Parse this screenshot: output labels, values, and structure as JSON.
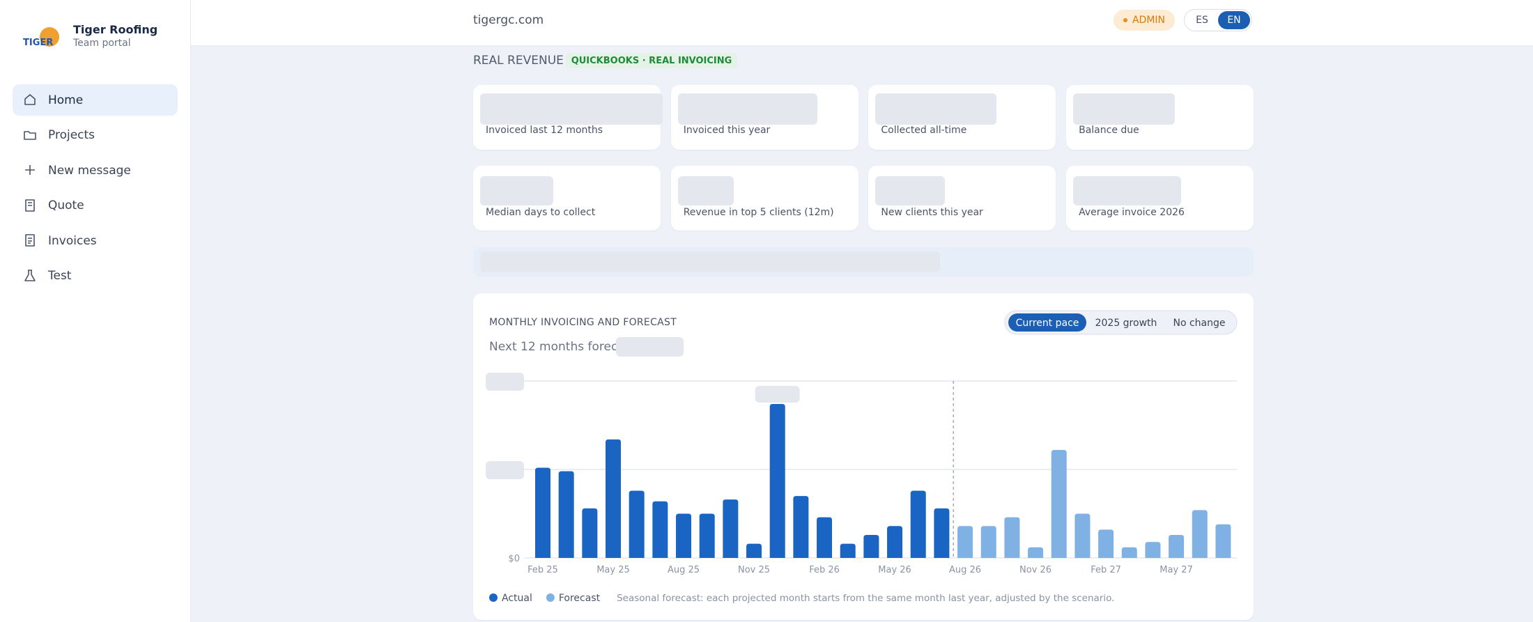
{
  "sidebar": {
    "brand": "Tiger Roofing",
    "subtitle": "Team portal",
    "nav": [
      "Home",
      "Projects",
      "New message",
      "Quote",
      "Invoices",
      "Test"
    ]
  },
  "topbar": {
    "domain": "tigergc.com",
    "role": "ADMIN",
    "languages": [
      "ES",
      "EN"
    ]
  },
  "section": {
    "title": "REAL REVENUE",
    "badge": "QUICKBOOKS · REAL INVOICING"
  },
  "kpis": [
    "Invoiced last 12 months",
    "Invoiced this year",
    "Collected all-time",
    "Balance due",
    "Median days to collect",
    "Revenue in top 5 clients (12m)",
    "New clients this year",
    "Average invoice 2026"
  ],
  "chart_data": {
    "type": "bar",
    "title": "MONTHLY INVOICING AND FORECAST",
    "subtitle": "Next 12 months forecast",
    "scenarios": [
      "Current pace",
      "2025 growth",
      "No change"
    ],
    "categories": [
      "Feb 25",
      null,
      null,
      "May 25",
      null,
      null,
      "Aug 25",
      null,
      null,
      "Nov 25",
      null,
      null,
      "Feb 26",
      null,
      null,
      "May 26",
      null,
      null,
      "Aug 26",
      null,
      null,
      "Nov 26",
      null,
      null,
      "Feb 27",
      null,
      null,
      "May 27",
      null,
      null
    ],
    "series": [
      {
        "name": "Actual",
        "color": "#1a65c4",
        "values": [
          51,
          49,
          28,
          67,
          38,
          32,
          25,
          25,
          33,
          8,
          87,
          35,
          23,
          8,
          13,
          18,
          38,
          28,
          null,
          null,
          null,
          null,
          null,
          null,
          null,
          null,
          null,
          null,
          null,
          null
        ]
      },
      {
        "name": "Forecast",
        "color": "#80b1e4",
        "values": [
          null,
          null,
          null,
          null,
          null,
          null,
          null,
          null,
          null,
          null,
          null,
          null,
          null,
          null,
          null,
          null,
          null,
          null,
          18,
          18,
          23,
          6,
          61,
          25,
          16,
          6,
          9,
          13,
          27,
          19
        ]
      }
    ],
    "ylim": [
      0,
      100
    ],
    "yticks": [
      {
        "value": 0,
        "label": "$0"
      }
    ],
    "ygrid": [
      50,
      100
    ],
    "grid": true,
    "note": "Seasonal forecast: each projected month starts from the same month last year, adjusted by the scenario."
  }
}
